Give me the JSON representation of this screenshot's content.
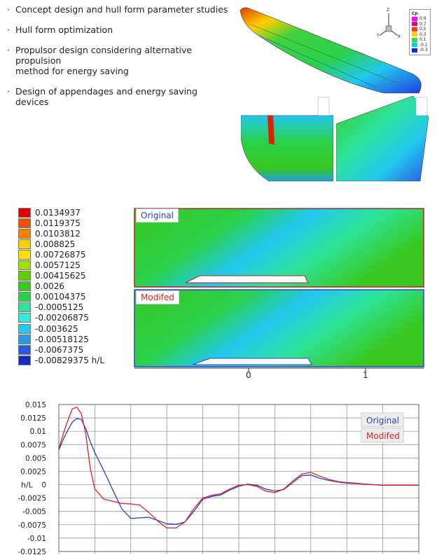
{
  "bullets": [
    "Concept design and hull form parameter studies",
    "Hull form optimization",
    "Propulsor design considering alternative propulsion\nmethod for energy saving",
    "Design of appendages and energy saving devices"
  ],
  "bullet_mark": "·",
  "cp_legend": {
    "title": "Cp",
    "levels": [
      "0.9",
      "0.7",
      "0.5",
      "0.3",
      "0.1",
      "-0.1",
      "-0.3"
    ],
    "colors": [
      "#ff00ff",
      "#e8007a",
      "#ff3b00",
      "#ffd200",
      "#3ddc3d",
      "#00d6e0",
      "#0030e0"
    ]
  },
  "axis_triad": {
    "z": "Z",
    "y": "Y",
    "x": "X"
  },
  "wave_legend": {
    "levels": [
      "0.0134937",
      "0.0119375",
      "0.0103812",
      "0.008825",
      "0.00726875",
      "0.0057125",
      "0.00415625",
      "0.0026",
      "0.00104375",
      "-0.0005125",
      "-0.00206875",
      "-0.003625",
      "-0.00518125",
      "-0.0067375",
      "-0.00829375"
    ],
    "colors": [
      "#e00000",
      "#f05000",
      "#f78000",
      "#ffd000",
      "#ffe000",
      "#9ee000",
      "#5cd000",
      "#38c820",
      "#2ad14a",
      "#2ee39a",
      "#38e8d8",
      "#22c8ee",
      "#2a98e8",
      "#2c58e0",
      "#1a28c8"
    ],
    "unit": "h/L"
  },
  "wave_panels": {
    "original_label": "Original",
    "modified_label": "Modifed",
    "x_ticks": [
      "0",
      "1"
    ]
  },
  "colors": {
    "original": "#2a3fc8",
    "modified": "#e02020",
    "grid": "#888888"
  },
  "chart_data": {
    "type": "line",
    "ylabel": "h/L",
    "ylim": [
      -0.0125,
      0.015
    ],
    "yticks": [
      "0.015",
      "0.0125",
      "0.01",
      "0.0075",
      "0.005",
      "0.0025",
      "0",
      "-0.0025",
      "-0.005",
      "-0.0075",
      "-0.01",
      "-0.0125"
    ],
    "x": [
      0,
      0.25,
      0.5,
      0.75,
      1,
      1.25,
      1.5,
      1.75,
      2,
      2.5,
      3,
      3.5,
      4,
      4.5,
      5,
      5.5,
      6,
      6.5,
      7,
      7.5,
      8,
      8.5,
      9,
      9.5,
      10,
      10.5,
      11,
      11.5,
      12,
      12.5,
      13,
      13.5,
      14,
      14.5,
      15,
      15.5,
      16,
      16.5,
      17,
      17.5,
      18,
      18.5,
      19,
      19.5,
      20
    ],
    "series": [
      {
        "name": "Original",
        "values": [
          0.0065,
          0.0085,
          0.0102,
          0.0117,
          0.0124,
          0.0122,
          0.0105,
          0.008,
          0.006,
          0.0026,
          -0.001,
          -0.0045,
          -0.0063,
          -0.0062,
          -0.0061,
          -0.0067,
          -0.0073,
          -0.0074,
          -0.007,
          -0.005,
          -0.0027,
          -0.0022,
          -0.0019,
          -0.001,
          -0.0003,
          0.0001,
          -0.0001,
          -0.0008,
          -0.0012,
          -0.0009,
          0.0004,
          0.0017,
          0.0018,
          0.0012,
          0.0008,
          0.0005,
          0.0003,
          0.0002,
          0.0001,
          0.0,
          -0.0001,
          -0.0001,
          -0.0001,
          -0.0001,
          -0.0001
        ]
      },
      {
        "name": "Modifed",
        "values": [
          0.0067,
          0.0095,
          0.012,
          0.0142,
          0.0145,
          0.0133,
          0.0095,
          0.003,
          -0.0008,
          -0.0027,
          -0.0031,
          -0.0035,
          -0.0036,
          -0.0038,
          -0.0052,
          -0.0068,
          -0.0081,
          -0.0081,
          -0.007,
          -0.0045,
          -0.0025,
          -0.002,
          -0.0017,
          -0.0008,
          -0.0001,
          0.0,
          -0.0003,
          -0.0012,
          -0.0015,
          -0.0008,
          0.0007,
          0.002,
          0.0023,
          0.0016,
          0.001,
          0.0006,
          0.0004,
          0.0003,
          0.0001,
          0.0,
          -0.0001,
          -0.0001,
          -0.0001,
          -0.0001,
          -0.0001
        ]
      }
    ],
    "legend_position": "top-right",
    "grid": true
  }
}
